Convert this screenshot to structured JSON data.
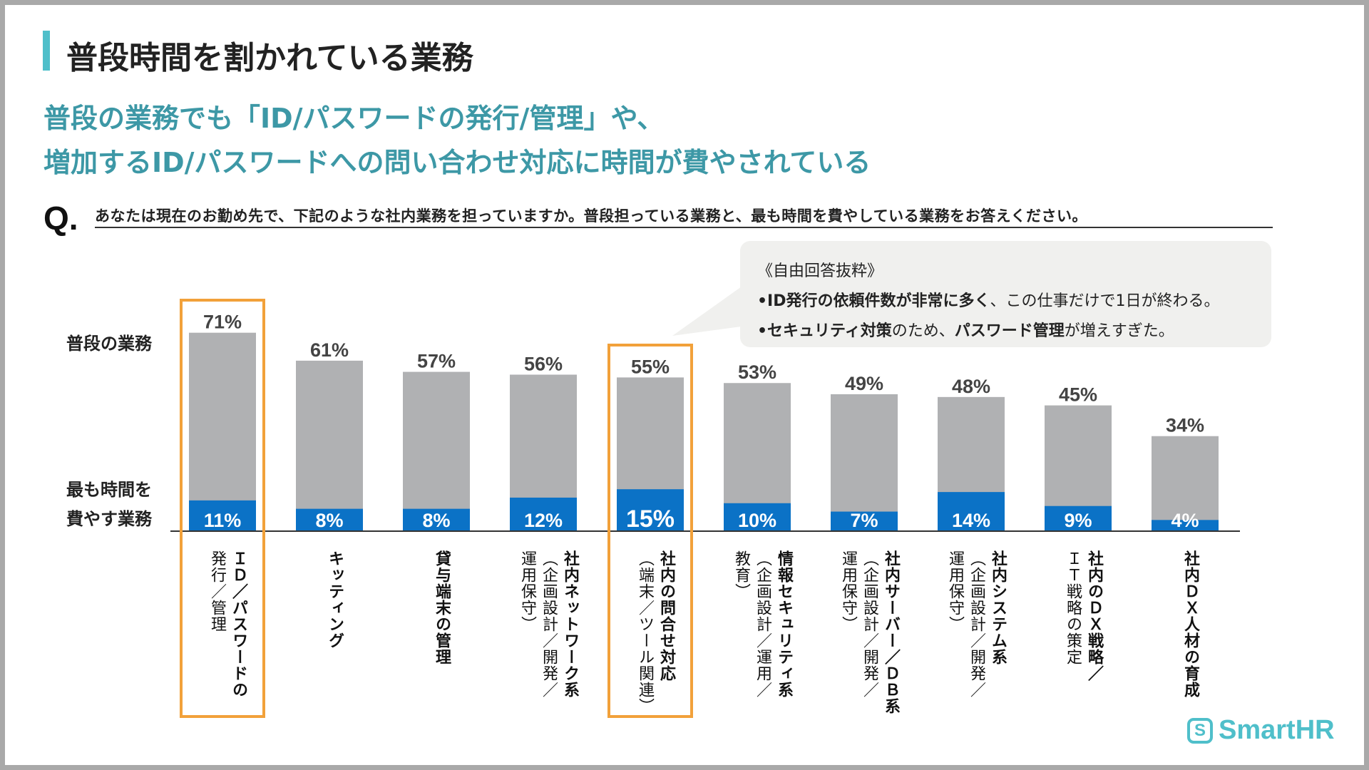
{
  "title": "普段時間を割かれている業務",
  "subtitle_lines": [
    "普段の業務でも「ID/パスワードの発行/管理」や、",
    "増加するID/パスワードへの問い合わせ対応に時間が費やされている"
  ],
  "question": {
    "mark": "Q.",
    "text": "あなたは現在のお勤め先で、下記のような社内業務を担っていますか。普段担っている業務と、最も時間を費やしている業務をお答えください。"
  },
  "callout": {
    "heading": "《自由回答抜粋》",
    "line1": {
      "bold": "•ID発行の依頼件数が非常に多く",
      "rest": "、この仕事だけで1日が終わる。"
    },
    "line2": {
      "b1": "•セキュリティ対策",
      "t1": "のため、",
      "b2": "パスワード管理",
      "t2": "が増えすぎた。"
    }
  },
  "logo": {
    "icon": "S",
    "text": "SmartHR"
  },
  "colors": {
    "usual": "#b0b1b3",
    "most_time": "#0b72c6",
    "highlight": "#f2a13a",
    "accent": "#4fbfca"
  },
  "chart_data": {
    "type": "bar",
    "stacked_overlay": true,
    "series_labels": {
      "usual": "普段の業務",
      "most_time_l1": "最も時間を",
      "most_time_l2": "費やす業務"
    },
    "categories": [
      [
        "ＩＤ／パスワードの",
        "発行／管理"
      ],
      [
        "キッティング"
      ],
      [
        "貸与端末の管理"
      ],
      [
        "社内ネットワーク系",
        "（企画設計／開発／",
        "運用保守）"
      ],
      [
        "社内の問合せ対応",
        "（端末／ツール関連）"
      ],
      [
        "情報セキュリティ系",
        "（企画設計／運用／",
        "教育）"
      ],
      [
        "社内サーバー／ＤＢ系",
        "（企画設計／開発／",
        "運用保守）"
      ],
      [
        "社内システム系",
        "（企画設計／開発／",
        "運用保守）"
      ],
      [
        "社内のＤＸ戦略／",
        "ＩＴ戦略の策定"
      ],
      [
        "社内ＤＸ人材の育成"
      ]
    ],
    "usual": [
      71,
      61,
      57,
      56,
      55,
      53,
      49,
      48,
      45,
      34
    ],
    "most_time": [
      11,
      8,
      8,
      12,
      15,
      10,
      7,
      14,
      9,
      4
    ],
    "highlighted": [
      0,
      4
    ],
    "ylim": [
      0,
      100
    ]
  }
}
